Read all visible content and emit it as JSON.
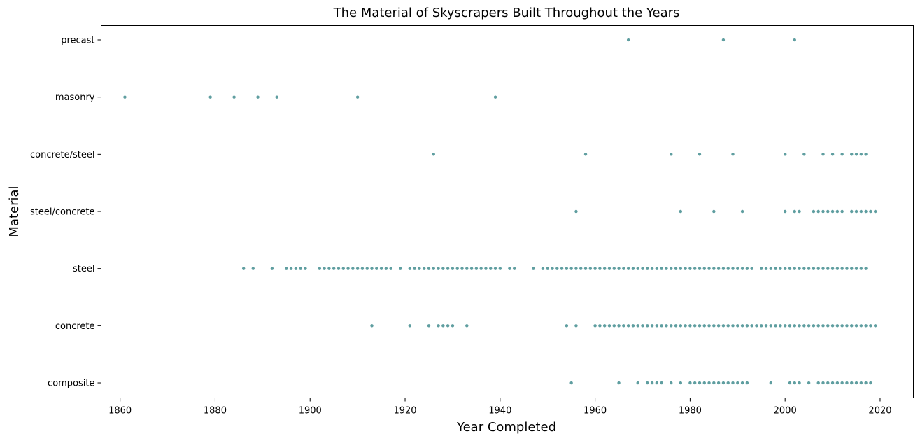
{
  "chart_data": {
    "type": "scatter",
    "title": "The Material of Skyscrapers Built Throughout the Years",
    "xlabel": "Year Completed",
    "ylabel": "Material",
    "xlim": [
      1856,
      2027
    ],
    "x_ticks": [
      1860,
      1880,
      1900,
      1920,
      1940,
      1960,
      1980,
      2000,
      2020
    ],
    "categories": [
      "composite",
      "concrete",
      "steel",
      "steel/concrete",
      "concrete/steel",
      "masonry",
      "precast"
    ],
    "grid": false,
    "legend": "none",
    "marker_color": "#5f9ea0",
    "series": [
      {
        "category": "precast",
        "x": [
          1967,
          1987,
          2002
        ]
      },
      {
        "category": "masonry",
        "x": [
          1861,
          1879,
          1884,
          1889,
          1893,
          1910,
          1939
        ]
      },
      {
        "category": "concrete/steel",
        "x": [
          1926,
          1958,
          1976,
          1982,
          1989,
          2000,
          2004,
          2008,
          2010,
          2012,
          2014,
          2015,
          2016,
          2017
        ]
      },
      {
        "category": "steel/concrete",
        "x": [
          1956,
          1978,
          1985,
          1991,
          2000,
          2002,
          2003,
          2006,
          2007,
          2008,
          2009,
          2010,
          2011,
          2012,
          2014,
          2015,
          2016,
          2017,
          2018,
          2019
        ]
      },
      {
        "category": "steel",
        "x": [
          1886,
          1888,
          1892,
          1895,
          1896,
          1897,
          1898,
          1899,
          1902,
          1903,
          1904,
          1905,
          1906,
          1907,
          1908,
          1909,
          1910,
          1911,
          1912,
          1913,
          1914,
          1915,
          1916,
          1917,
          1919,
          1921,
          1922,
          1923,
          1924,
          1925,
          1926,
          1927,
          1928,
          1929,
          1930,
          1931,
          1932,
          1933,
          1934,
          1935,
          1936,
          1937,
          1938,
          1939,
          1940,
          1942,
          1943,
          1947,
          1949,
          1950,
          1951,
          1952,
          1953,
          1954,
          1955,
          1956,
          1957,
          1958,
          1959,
          1960,
          1961,
          1962,
          1963,
          1964,
          1965,
          1966,
          1967,
          1968,
          1969,
          1970,
          1971,
          1972,
          1973,
          1974,
          1975,
          1976,
          1977,
          1978,
          1979,
          1980,
          1981,
          1982,
          1983,
          1984,
          1985,
          1986,
          1987,
          1988,
          1989,
          1990,
          1991,
          1992,
          1993,
          1995,
          1996,
          1997,
          1998,
          1999,
          2000,
          2001,
          2002,
          2003,
          2004,
          2005,
          2006,
          2007,
          2008,
          2009,
          2010,
          2011,
          2012,
          2013,
          2014,
          2015,
          2016,
          2017
        ]
      },
      {
        "category": "concrete",
        "x": [
          1913,
          1921,
          1925,
          1927,
          1928,
          1929,
          1930,
          1933,
          1954,
          1956,
          1960,
          1961,
          1962,
          1963,
          1964,
          1965,
          1966,
          1967,
          1968,
          1969,
          1970,
          1971,
          1972,
          1973,
          1974,
          1975,
          1976,
          1977,
          1978,
          1979,
          1980,
          1981,
          1982,
          1983,
          1984,
          1985,
          1986,
          1987,
          1988,
          1989,
          1990,
          1991,
          1992,
          1993,
          1994,
          1995,
          1996,
          1997,
          1998,
          1999,
          2000,
          2001,
          2002,
          2003,
          2004,
          2005,
          2006,
          2007,
          2008,
          2009,
          2010,
          2011,
          2012,
          2013,
          2014,
          2015,
          2016,
          2017,
          2018,
          2019
        ]
      },
      {
        "category": "composite",
        "x": [
          1955,
          1965,
          1969,
          1971,
          1972,
          1973,
          1974,
          1976,
          1978,
          1980,
          1981,
          1982,
          1983,
          1984,
          1985,
          1986,
          1987,
          1988,
          1989,
          1990,
          1991,
          1992,
          1997,
          2001,
          2002,
          2003,
          2005,
          2007,
          2008,
          2009,
          2010,
          2011,
          2012,
          2013,
          2014,
          2015,
          2016,
          2017,
          2018
        ]
      }
    ]
  }
}
